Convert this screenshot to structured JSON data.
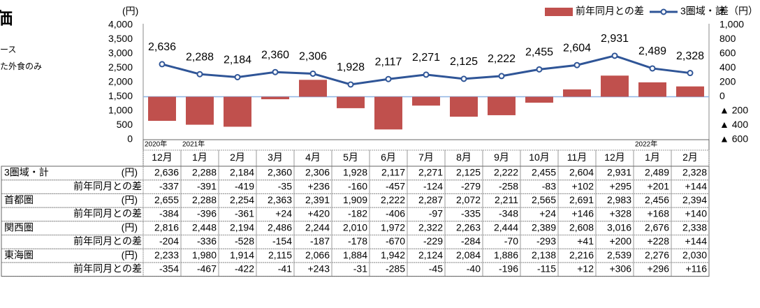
{
  "side_text": {
    "title": "価",
    "line1": "ース",
    "line2": "た外食のみ"
  },
  "chart_data": {
    "type": "bar-line",
    "y_unit": "(円)",
    "y2_unit": "差（円）",
    "categories": [
      "12月",
      "1月",
      "2月",
      "3月",
      "4月",
      "5月",
      "6月",
      "7月",
      "8月",
      "9月",
      "10月",
      "11月",
      "12月",
      "1月",
      "2月"
    ],
    "year_labels": [
      "2020年",
      "2021年",
      null,
      null,
      null,
      null,
      null,
      null,
      null,
      null,
      null,
      null,
      null,
      "2022年",
      null
    ],
    "series": [
      {
        "name": "前年同月との差",
        "type": "bar",
        "axis": "y2",
        "color": "#c0504d",
        "values": [
          -337,
          -391,
          -419,
          -35,
          236,
          -160,
          -457,
          -124,
          -279,
          -258,
          -83,
          102,
          295,
          201,
          144
        ]
      },
      {
        "name": "3圏域・計",
        "type": "line",
        "color": "#2f5597",
        "values": [
          2636,
          2288,
          2184,
          2360,
          2306,
          1928,
          2117,
          2271,
          2125,
          2222,
          2455,
          2604,
          2931,
          2489,
          2328
        ],
        "value_labels": [
          "2,636",
          "2,288",
          "2,184",
          "2,360",
          "2,306",
          "1,928",
          "2,117",
          "2,271",
          "2,125",
          "2,222",
          "2,455",
          "2,604",
          "2,931",
          "2,489",
          "2,328"
        ]
      }
    ],
    "ylim": [
      0,
      4000
    ],
    "yticks": [
      0,
      {
        "value": 500,
        "label": "500"
      },
      {
        "value": 1000,
        "label": "1,000"
      },
      {
        "value": 1500,
        "label": "1,500"
      },
      {
        "value": 2000,
        "label": "2,000"
      },
      {
        "value": 2500,
        "label": "2,500"
      },
      {
        "value": 3000,
        "label": "3,000"
      },
      {
        "value": 3500,
        "label": "3,500"
      },
      {
        "value": 4000,
        "label": "4,000"
      }
    ],
    "y2lim": [
      -600,
      1000
    ],
    "y2ticks": [
      {
        "value": -600,
        "label": "▲ 600"
      },
      {
        "value": -400,
        "label": "▲ 400"
      },
      {
        "value": -200,
        "label": "▲ 200"
      },
      0,
      200,
      400,
      600,
      800,
      {
        "value": 1000,
        "label": "1,000"
      }
    ]
  },
  "table": {
    "rows": [
      {
        "label": "3圏域・計",
        "unit": "(円)",
        "cells": [
          "2,636",
          "2,288",
          "2,184",
          "2,360",
          "2,306",
          "1,928",
          "2,117",
          "2,271",
          "2,125",
          "2,222",
          "2,455",
          "2,604",
          "2,931",
          "2,489",
          "2,328"
        ]
      },
      {
        "label": "前年同月との差",
        "cells": [
          "-337",
          "-391",
          "-419",
          "-35",
          "+236",
          "-160",
          "-457",
          "-124",
          "-279",
          "-258",
          "-83",
          "+102",
          "+295",
          "+201",
          "+144"
        ]
      },
      {
        "label": "首都圏",
        "unit": "(円)",
        "cells": [
          "2,655",
          "2,288",
          "2,254",
          "2,363",
          "2,391",
          "1,909",
          "2,222",
          "2,287",
          "2,072",
          "2,211",
          "2,565",
          "2,691",
          "2,983",
          "2,456",
          "2,394"
        ]
      },
      {
        "label": "前年同月との差",
        "cells": [
          "-384",
          "-396",
          "-361",
          "+24",
          "+420",
          "-182",
          "-406",
          "-97",
          "-335",
          "-348",
          "+24",
          "+146",
          "+328",
          "+168",
          "+140"
        ]
      },
      {
        "label": "関西圏",
        "unit": "(円)",
        "cells": [
          "2,816",
          "2,448",
          "2,194",
          "2,486",
          "2,244",
          "2,010",
          "1,972",
          "2,322",
          "2,263",
          "2,444",
          "2,389",
          "2,608",
          "3,016",
          "2,676",
          "2,338"
        ]
      },
      {
        "label": "前年同月との差",
        "cells": [
          "-204",
          "-336",
          "-528",
          "-154",
          "-187",
          "-178",
          "-670",
          "-229",
          "-284",
          "-70",
          "-293",
          "+41",
          "+200",
          "+228",
          "+144"
        ]
      },
      {
        "label": "東海圏",
        "unit": "(円)",
        "cells": [
          "2,233",
          "1,980",
          "1,914",
          "2,115",
          "2,066",
          "1,884",
          "1,942",
          "2,124",
          "2,084",
          "1,886",
          "2,138",
          "2,216",
          "2,539",
          "2,276",
          "2,030"
        ]
      },
      {
        "label": "前年同月との差",
        "cells": [
          "-354",
          "-467",
          "-422",
          "-41",
          "+243",
          "-31",
          "-285",
          "-45",
          "-40",
          "-196",
          "-115",
          "+12",
          "+306",
          "+296",
          "+116"
        ]
      }
    ]
  }
}
